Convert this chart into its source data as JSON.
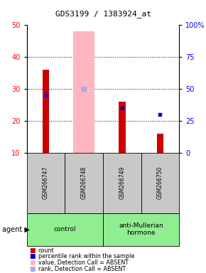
{
  "title": "GDS3199 / 1383924_at",
  "samples": [
    "GSM266747",
    "GSM266748",
    "GSM266749",
    "GSM266750"
  ],
  "count_values": [
    36,
    null,
    26,
    16
  ],
  "rank_values": [
    28,
    null,
    24,
    null
  ],
  "absent_count_values": [
    null,
    48,
    null,
    null
  ],
  "absent_rank_values": [
    null,
    30,
    null,
    null
  ],
  "absent_rank_dot": [
    null,
    null,
    null,
    22
  ],
  "ylim_left": [
    10,
    50
  ],
  "ylim_right": [
    0,
    100
  ],
  "yticks_left": [
    10,
    20,
    30,
    40,
    50
  ],
  "yticks_right": [
    0,
    25,
    50,
    75,
    100
  ],
  "yticklabels_right": [
    "0",
    "25",
    "50",
    "75",
    "100%"
  ],
  "count_color": "#CC0000",
  "rank_color": "#0000CC",
  "absent_count_color": "#FFB6C1",
  "absent_rank_color": "#AAAADD",
  "control_color": "#90EE90",
  "treatment_color": "#90EE90",
  "sample_bg": "#C8C8C8",
  "title_fontsize": 8,
  "legend_items": [
    [
      "#CC0000",
      "count"
    ],
    [
      "#0000CC",
      "percentile rank within the sample"
    ],
    [
      "#FFB6C1",
      "value, Detection Call = ABSENT"
    ],
    [
      "#AAAADD",
      "rank, Detection Call = ABSENT"
    ]
  ]
}
